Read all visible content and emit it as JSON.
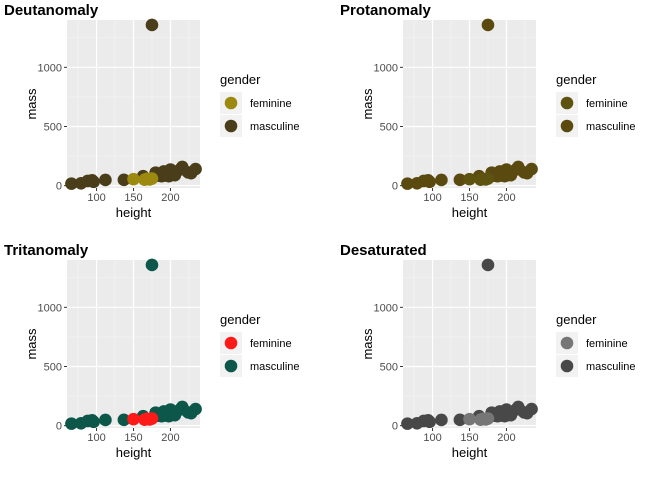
{
  "chart_data": [
    {
      "type": "scatter",
      "title": "Deutanomaly",
      "xlabel": "height",
      "ylabel": "mass",
      "xlim": [
        60,
        240
      ],
      "ylim": [
        -20,
        1400
      ],
      "xticks": [
        100,
        150,
        200
      ],
      "yticks": [
        0,
        500,
        1000
      ],
      "grid": true,
      "legend": {
        "title": "gender",
        "position": "right"
      },
      "series": [
        {
          "name": "feminine",
          "color": "#9b8a0f",
          "x": [
            150,
            165,
            168,
            172,
            175
          ],
          "y": [
            55,
            50,
            58,
            52,
            60
          ]
        },
        {
          "name": "masculine",
          "color": "#4a3d1a",
          "x": [
            66,
            79,
            88,
            94,
            96,
            112,
            137,
            163,
            175,
            180,
            183,
            185,
            188,
            191,
            193,
            196,
            198,
            200,
            202,
            206,
            213,
            216,
            224,
            228,
            234
          ],
          "y": [
            17,
            20,
            40,
            45,
            32,
            48,
            49,
            80,
            1358,
            110,
            84,
            90,
            80,
            120,
            85,
            95,
            80,
            136,
            120,
            88,
            136,
            158,
            112,
            105,
            140
          ]
        }
      ]
    },
    {
      "type": "scatter",
      "title": "Protanomaly",
      "xlabel": "height",
      "ylabel": "mass",
      "xlim": [
        60,
        240
      ],
      "ylim": [
        -20,
        1400
      ],
      "xticks": [
        100,
        150,
        200
      ],
      "yticks": [
        0,
        500,
        1000
      ],
      "grid": true,
      "legend": {
        "title": "gender",
        "position": "right"
      },
      "series": [
        {
          "name": "feminine",
          "color": "#5e5210",
          "x": [
            150,
            165,
            168,
            172,
            175
          ],
          "y": [
            55,
            50,
            58,
            52,
            60
          ]
        },
        {
          "name": "masculine",
          "color": "#5b4a10",
          "x": [
            66,
            79,
            88,
            94,
            96,
            112,
            137,
            163,
            175,
            180,
            183,
            185,
            188,
            191,
            193,
            196,
            198,
            200,
            202,
            206,
            213,
            216,
            224,
            228,
            234
          ],
          "y": [
            17,
            20,
            40,
            45,
            32,
            48,
            49,
            80,
            1358,
            110,
            84,
            90,
            80,
            120,
            85,
            95,
            80,
            136,
            120,
            88,
            136,
            158,
            112,
            105,
            140
          ]
        }
      ]
    },
    {
      "type": "scatter",
      "title": "Tritanomaly",
      "xlabel": "height",
      "ylabel": "mass",
      "xlim": [
        60,
        240
      ],
      "ylim": [
        -20,
        1400
      ],
      "xticks": [
        100,
        150,
        200
      ],
      "yticks": [
        0,
        500,
        1000
      ],
      "grid": true,
      "legend": {
        "title": "gender",
        "position": "right"
      },
      "series": [
        {
          "name": "feminine",
          "color": "#ff1a1a",
          "x": [
            150,
            165,
            168,
            172,
            175
          ],
          "y": [
            55,
            50,
            58,
            52,
            60
          ]
        },
        {
          "name": "masculine",
          "color": "#0d574a",
          "x": [
            66,
            79,
            88,
            94,
            96,
            112,
            137,
            163,
            175,
            180,
            183,
            185,
            188,
            191,
            193,
            196,
            198,
            200,
            202,
            206,
            213,
            216,
            224,
            228,
            234
          ],
          "y": [
            17,
            20,
            40,
            45,
            32,
            48,
            49,
            80,
            1358,
            110,
            84,
            90,
            80,
            120,
            85,
            95,
            80,
            136,
            120,
            88,
            136,
            158,
            112,
            105,
            140
          ]
        }
      ]
    },
    {
      "type": "scatter",
      "title": "Desaturated",
      "xlabel": "height",
      "ylabel": "mass",
      "xlim": [
        60,
        240
      ],
      "ylim": [
        -20,
        1400
      ],
      "xticks": [
        100,
        150,
        200
      ],
      "yticks": [
        0,
        500,
        1000
      ],
      "grid": true,
      "legend": {
        "title": "gender",
        "position": "right"
      },
      "series": [
        {
          "name": "feminine",
          "color": "#767676",
          "x": [
            150,
            165,
            168,
            172,
            175
          ],
          "y": [
            55,
            50,
            58,
            52,
            60
          ]
        },
        {
          "name": "masculine",
          "color": "#484848",
          "x": [
            66,
            79,
            88,
            94,
            96,
            112,
            137,
            163,
            175,
            180,
            183,
            185,
            188,
            191,
            193,
            196,
            198,
            200,
            202,
            206,
            213,
            216,
            224,
            228,
            234
          ],
          "y": [
            17,
            20,
            40,
            45,
            32,
            48,
            49,
            80,
            1358,
            110,
            84,
            90,
            80,
            120,
            85,
            95,
            80,
            136,
            120,
            88,
            136,
            158,
            112,
            105,
            140
          ]
        }
      ]
    }
  ]
}
